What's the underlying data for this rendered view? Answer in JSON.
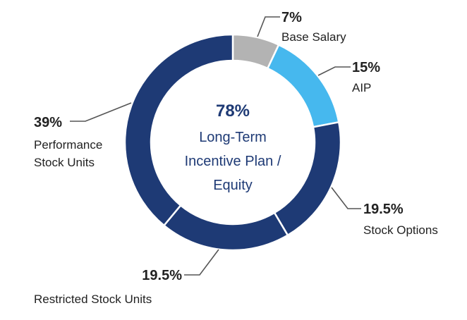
{
  "chart_data": {
    "type": "pie",
    "donut": true,
    "start": "12 o'clock",
    "direction": "clockwise",
    "slices": [
      {
        "label": "Base Salary",
        "value": 7,
        "value_text": "7%",
        "color": "#b3b3b3"
      },
      {
        "label": "AIP",
        "value": 15,
        "value_text": "15%",
        "color": "#46b8ee"
      },
      {
        "label": "Stock Options",
        "value": 19.5,
        "value_text": "19.5%",
        "color": "#1e3a75"
      },
      {
        "label": "Restricted Stock Units",
        "value": 19.5,
        "value_text": "19.5%",
        "color": "#1e3a75"
      },
      {
        "label": "Performance Stock Units",
        "value": 39,
        "value_text": "39%",
        "color": "#1e3a75"
      }
    ],
    "center": {
      "value_text": "78%",
      "lines": [
        "Long-Term",
        "Incentive Plan /",
        "Equity"
      ],
      "color": "#1e3a75"
    }
  }
}
